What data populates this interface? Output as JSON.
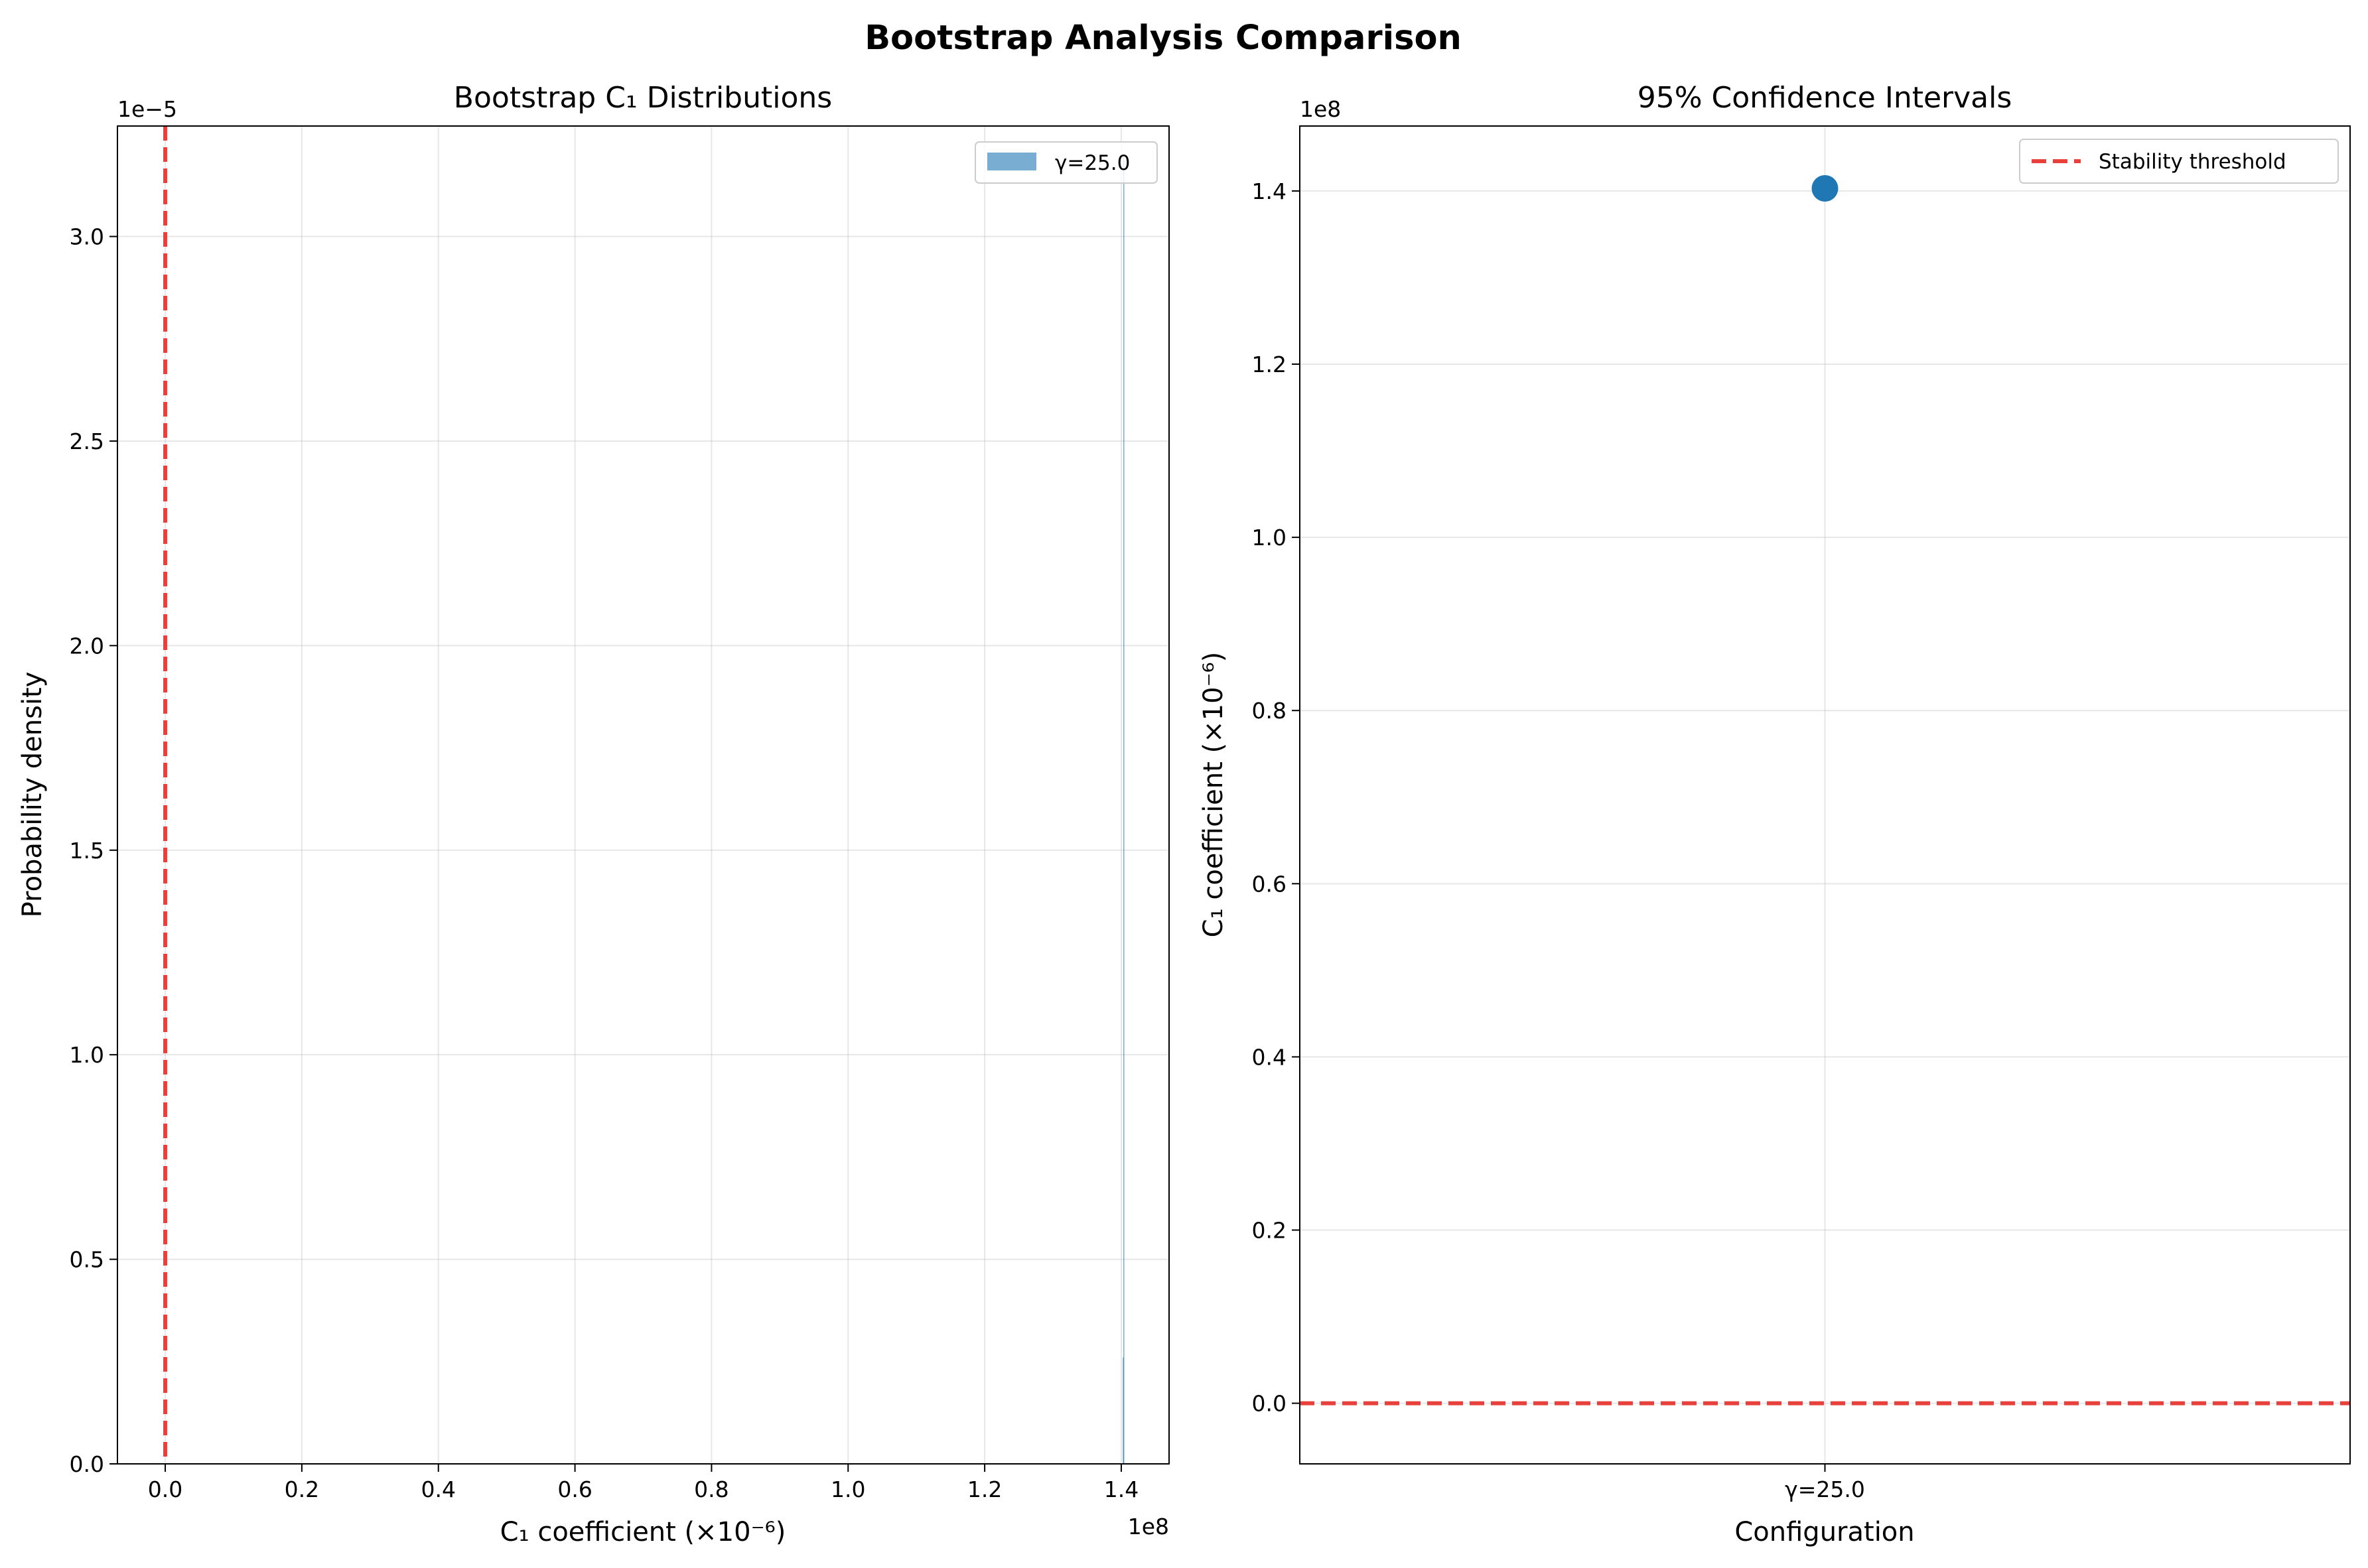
{
  "figure": {
    "title": "Bootstrap Analysis Comparison"
  },
  "chart_data": [
    {
      "type": "histogram",
      "title": "Bootstrap C₁ Distributions",
      "xlabel": "C₁ coefficient (×10⁻⁶)",
      "ylabel": "Probability density",
      "x_offset_label": "1e8",
      "y_offset_label": "1e−5",
      "xlim": [
        -0.07,
        1.47
      ],
      "ylim": [
        0,
        3.27
      ],
      "xticks": [
        0.0,
        0.2,
        0.4,
        0.6,
        0.8,
        1.0,
        1.2,
        1.4
      ],
      "xtick_labels": [
        "0.0",
        "0.2",
        "0.4",
        "0.6",
        "0.8",
        "1.0",
        "1.2",
        "1.4"
      ],
      "yticks": [
        0.0,
        0.5,
        1.0,
        1.5,
        2.0,
        2.5,
        3.0
      ],
      "ytick_labels": [
        "0.0",
        "0.5",
        "1.0",
        "1.5",
        "2.0",
        "2.5",
        "3.0"
      ],
      "grid": true,
      "legend_position": "top-right",
      "series": [
        {
          "name": "γ=25.0",
          "color": "#1f77b4",
          "bars": [
            {
              "x0": 1.4022,
              "x1": 1.403,
              "value": 0.26
            },
            {
              "x0": 1.403,
              "x1": 1.4038,
              "value": 3.2
            }
          ]
        }
      ],
      "reference_line": {
        "orientation": "vertical",
        "x": 0.0,
        "color": "#e8403a"
      }
    },
    {
      "type": "scatter",
      "title": "95% Confidence Intervals",
      "xlabel": "Configuration",
      "ylabel": "C₁ coefficient (×10⁻⁶)",
      "y_offset_label": "1e8",
      "categories": [
        "γ=25.0"
      ],
      "ylim": [
        -0.07,
        1.475
      ],
      "yticks": [
        0.0,
        0.2,
        0.4,
        0.6,
        0.8,
        1.0,
        1.2,
        1.4
      ],
      "ytick_labels": [
        "0.0",
        "0.2",
        "0.4",
        "0.6",
        "0.8",
        "1.0",
        "1.2",
        "1.4"
      ],
      "grid": true,
      "legend_position": "top-right",
      "points": [
        {
          "category": "γ=25.0",
          "value": 1.403,
          "color": "#1f77b4"
        }
      ],
      "reference_line": {
        "orientation": "horizontal",
        "y": 0.0,
        "color": "#e8403a",
        "label": "Stability threshold"
      }
    }
  ]
}
